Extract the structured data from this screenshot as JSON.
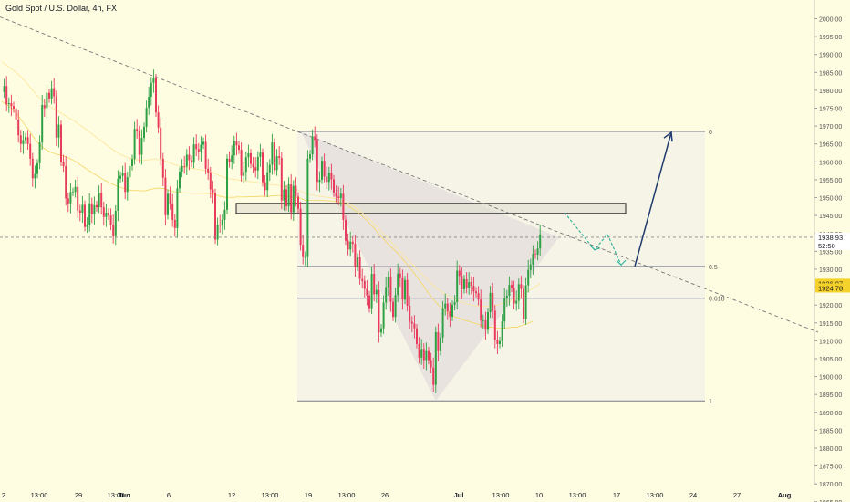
{
  "chart_data": {
    "type": "candlestick",
    "title": "Gold Spot / U.S. Dollar, 4h, FX",
    "ylim": [
      1865,
      2000
    ],
    "y_ticks": [
      1865,
      1870,
      1875,
      1880,
      1885,
      1890,
      1895,
      1900,
      1905,
      1910,
      1915,
      1920,
      1925,
      1930,
      1935,
      1940,
      1945,
      1950,
      1955,
      1960,
      1965,
      1970,
      1975,
      1980,
      1985,
      1990,
      1995,
      2000
    ],
    "x_labels": [
      "2",
      "13:00",
      "29",
      "13:00",
      "Jun",
      "6",
      "12",
      "13:00",
      "19",
      "13:00",
      "26",
      "Jul",
      "13:00",
      "10",
      "13:00",
      "17",
      "13:00",
      "24",
      "27",
      "Aug"
    ],
    "price_labels": [
      {
        "text": "1938.93",
        "value": 1938.93,
        "bg": "#ffffff",
        "fg": "#131722"
      },
      {
        "text": "52:50",
        "value": 1936.6,
        "bg": "#ffffff",
        "fg": "#131722"
      },
      {
        "text": "1926.07",
        "value": 1926.07,
        "bg": "#f5d22a",
        "fg": "#131722"
      },
      {
        "text": "1924.78",
        "value": 1924.78,
        "bg": "#f5d22a",
        "fg": "#131722"
      }
    ],
    "fib_levels": [
      {
        "label": "0",
        "value": 1968.5
      },
      {
        "label": "0.5",
        "value": 1930.8
      },
      {
        "label": "0.618",
        "value": 1921.9
      },
      {
        "label": "1",
        "value": 1893.2
      }
    ],
    "resistance_zone": [
      1945.6,
      1948.4
    ],
    "current_price": 1938.93,
    "colors": {
      "up": "#26a69a",
      "down": "#ef5350",
      "up_alt": "#2ea043",
      "down_alt": "#e83b5c",
      "ma": "#f5d86b",
      "fib": "#787b86",
      "arrow_up": "#1f3a6e",
      "arrow_down": "#2bb39a",
      "bg": "#fffde1"
    },
    "series": [
      {
        "values": [
          1979.5,
          1981.2,
          1976.1,
          1976.4,
          1975.6,
          1974.9,
          1971.8,
          1967.4,
          1965.0,
          1966.1,
          1966.9,
          1965.0,
          1960.9,
          1955.4,
          1956.6,
          1959.6,
          1965.4,
          1975.9,
          1975.0,
          1979.3,
          1977.7,
          1980.6,
          1978.3,
          1966.8,
          1970.4,
          1960.0,
          1958.8,
          1949.8,
          1948.4,
          1951.6,
          1951.6,
          1953.0,
          1946.4,
          1945.8,
          1948.0,
          1941.8,
          1942.5,
          1948.4,
          1945.3,
          1947.9,
          1947.3,
          1951.4,
          1947.3,
          1944.6,
          1945.8,
          1945.0,
          1942.5,
          1939.2,
          1946.3,
          1955.3,
          1956.1,
          1956.9,
          1951.6,
          1955.7,
          1958.8,
          1960.8,
          1969.2,
          1968.5,
          1962.0,
          1966.7,
          1969.8,
          1975.1,
          1978.2,
          1982.1,
          1983.4,
          1973.8,
          1969.6,
          1960.9,
          1955.6,
          1945.1,
          1951.1,
          1948.2,
          1943.8,
          1941.5,
          1952.6,
          1957.3,
          1958.8,
          1958.7,
          1962.0,
          1960.5,
          1959.8,
          1964.9,
          1963.6,
          1962.9,
          1964.8,
          1965.6,
          1958.1,
          1957.0,
          1952.3,
          1951.3,
          1938.3,
          1942.4,
          1942.2,
          1943.8,
          1946.6,
          1960.9,
          1960.0,
          1961.8,
          1965.7,
          1964.6,
          1963.4,
          1956.1,
          1957.2,
          1961.3,
          1962.4,
          1959.4,
          1958.5,
          1957.6,
          1961.4,
          1962.6,
          1954.3,
          1952.1,
          1957.1,
          1959.2,
          1965.4,
          1957.7,
          1961.6,
          1961.1,
          1949.2,
          1952.3,
          1947.6,
          1953.7,
          1945.9,
          1953.3,
          1950.3,
          1946.9,
          1936.8,
          1933.4,
          1933.4,
          1960.9,
          1962.1,
          1967.1,
          1966.1,
          1954.4,
          1955.0,
          1960.3,
          1955.9,
          1954.4,
          1957.0,
          1955.1,
          1951.4,
          1950.3,
          1949.9,
          1951.1,
          1943.8,
          1938.0,
          1935.5,
          1937.7,
          1937.1,
          1930.7,
          1933.3,
          1927.3,
          1926.7,
          1924.5,
          1922.7,
          1919.1,
          1928.7,
          1923.0,
          1924.2,
          1912.3,
          1913.5,
          1920.7,
          1925.0,
          1927.8,
          1920.9,
          1916.7,
          1922.8,
          1928.8,
          1927.5,
          1921.5,
          1927.0,
          1919.8,
          1915.3,
          1914.8,
          1913.5,
          1909.1,
          1905.3,
          1907.7,
          1904.6,
          1907.1,
          1904.6,
          1902.5,
          1897.7,
          1912.4,
          1907.1,
          1910.9,
          1919.1,
          1920.4,
          1918.2,
          1916.7,
          1920.1,
          1920.8,
          1929.6,
          1928.1,
          1924.4,
          1927.2,
          1924.9,
          1926.4,
          1925.4,
          1923.8,
          1923.3,
          1921.5,
          1915.7,
          1915.7,
          1913.1,
          1918.0,
          1923.4,
          1918.4,
          1910.3,
          1909.1,
          1909.9,
          1915.4,
          1921.9,
          1922.6,
          1925.6,
          1924.8,
          1920.4,
          1921.2,
          1925.8,
          1924.5,
          1916.1,
          1925.5,
          1929.8,
          1931.3,
          1934.3,
          1934.1,
          1935.8,
          1939.7
        ]
      },
      {
        "values": [
          1976.9,
          1976.5,
          1976.0,
          1975.6,
          1975.1,
          1974.4,
          1973.8,
          1972.8,
          1971.9,
          1971.0,
          1970.0,
          1969.3,
          1968.2,
          1967.3,
          1966.3,
          1965.5,
          1964.8,
          1964.2,
          1963.7,
          1963.3,
          1962.9,
          1962.6,
          1962.4,
          1962.1,
          1962.0,
          1961.9,
          1961.7,
          1961.4,
          1961.2,
          1960.8,
          1960.5,
          1960.1,
          1959.7,
          1959.2,
          1958.8,
          1958.3,
          1957.9,
          1957.5,
          1957.0,
          1956.6,
          1956.2,
          1955.8,
          1955.4,
          1955.0,
          1954.7,
          1954.3,
          1954.0,
          1953.6,
          1953.4,
          1953.1,
          1952.9,
          1952.7,
          1952.5,
          1952.3,
          1952.1,
          1952.0,
          1952.0,
          1952.0,
          1951.9,
          1951.9,
          1951.9,
          1952.0,
          1952.2,
          1952.3,
          1952.5,
          1952.6,
          1952.7,
          1952.6,
          1952.6,
          1952.4,
          1952.2,
          1952.0,
          1951.8,
          1951.6,
          1951.5,
          1951.4,
          1951.4,
          1951.3,
          1951.3,
          1951.3,
          1951.2,
          1951.2,
          1951.2,
          1951.2,
          1951.2,
          1951.2,
          1951.2,
          1951.2,
          1951.1,
          1951.0,
          1950.8,
          1950.6,
          1950.4,
          1950.3,
          1950.1,
          1950.1,
          1950.1,
          1950.1,
          1950.1,
          1950.2,
          1950.2,
          1950.2,
          1950.2,
          1950.2,
          1950.3,
          1950.3,
          1950.3,
          1950.3,
          1950.3,
          1950.4,
          1950.4,
          1950.3,
          1950.4,
          1950.4,
          1950.5,
          1950.5,
          1950.6,
          1950.6,
          1950.5,
          1950.4,
          1950.3,
          1950.3,
          1950.2,
          1950.1,
          1950.1,
          1950.0,
          1949.8,
          1949.5,
          1949.2,
          1949.2,
          1949.2,
          1949.2,
          1949.2,
          1949.2,
          1949.2,
          1949.2,
          1949.2,
          1949.1,
          1949.1,
          1949.1,
          1949.0,
          1948.9,
          1948.8,
          1948.6,
          1948.4,
          1948.1,
          1947.7,
          1947.3,
          1946.9,
          1946.4,
          1945.9,
          1945.4,
          1944.8,
          1944.2,
          1943.6,
          1942.8,
          1942.2,
          1941.5,
          1940.6,
          1939.8,
          1939.1,
          1938.5,
          1937.8,
          1937.0,
          1936.3,
          1935.7,
          1935.1,
          1934.4,
          1933.7,
          1932.9,
          1932.1,
          1931.3,
          1930.5,
          1929.7,
          1928.8,
          1927.9,
          1927.0,
          1926.1,
          1925.2,
          1924.2,
          1923.3,
          1922.5,
          1921.6,
          1920.8,
          1920.1,
          1919.5,
          1918.9,
          1918.3,
          1917.7,
          1917.3,
          1917.0,
          1916.7,
          1916.5,
          1916.3,
          1916.0,
          1915.8,
          1915.6,
          1915.4,
          1915.2,
          1915.0,
          1914.8,
          1914.6,
          1914.4,
          1914.1,
          1914.0,
          1913.9,
          1913.8,
          1913.8,
          1913.6,
          1913.5,
          1913.5,
          1913.5,
          1913.5,
          1913.6,
          1913.7,
          1913.8,
          1913.8,
          1913.8,
          1914.0,
          1914.2,
          1914.4,
          1914.6,
          1914.9,
          1915.2,
          1915.5
        ]
      },
      {
        "values": [
          1988.0,
          1987.5,
          1987.0,
          1986.5,
          1986.0,
          1985.5,
          1985.0,
          1984.4,
          1983.8,
          1983.1,
          1982.4,
          1981.6,
          1980.8,
          1980.0,
          1979.3,
          1978.5,
          1977.8,
          1977.2,
          1976.6,
          1976.1,
          1975.6,
          1975.2,
          1974.8,
          1974.4,
          1974.0,
          1973.6,
          1973.2,
          1972.8,
          1972.4,
          1972.0,
          1971.6,
          1971.2,
          1970.7,
          1970.3,
          1969.8,
          1969.3,
          1968.8,
          1968.3,
          1967.8,
          1967.3,
          1966.8,
          1966.3,
          1965.8,
          1965.3,
          1964.8,
          1964.3,
          1963.8,
          1963.3,
          1962.9,
          1962.5,
          1962.1,
          1961.8,
          1961.5,
          1961.2,
          1961.0,
          1960.8,
          1960.7,
          1960.6,
          1960.5,
          1960.4,
          1960.4,
          1960.5,
          1960.6,
          1960.7,
          1960.8,
          1960.8,
          1960.7,
          1960.6,
          1960.4,
          1960.2,
          1959.9,
          1959.7,
          1959.4,
          1959.2,
          1959.0,
          1958.8,
          1958.7,
          1958.5,
          1958.4,
          1958.3,
          1958.2,
          1958.1,
          1958.0,
          1957.9,
          1957.8,
          1957.7,
          1957.6,
          1957.4,
          1957.2,
          1957.0,
          1956.7,
          1956.4,
          1956.1,
          1955.8,
          1955.6,
          1955.4,
          1955.3,
          1955.2,
          1955.1,
          1955.0,
          1954.9,
          1954.8,
          1954.7,
          1954.6,
          1954.6,
          1954.5,
          1954.4,
          1954.3,
          1954.2,
          1954.1,
          1954.0,
          1953.9,
          1953.8,
          1953.7,
          1953.6,
          1953.5,
          1953.5,
          1953.4,
          1953.3,
          1953.1,
          1953.0,
          1952.8,
          1952.7,
          1952.5,
          1952.3,
          1952.1,
          1951.8,
          1951.5,
          1951.2,
          1951.0,
          1950.8,
          1950.7,
          1950.6,
          1950.5,
          1950.4,
          1950.3,
          1950.2,
          1950.1,
          1950.0,
          1949.9,
          1949.8,
          1949.7,
          1949.5,
          1949.3,
          1949.1,
          1948.8,
          1948.5,
          1948.1,
          1947.7,
          1947.3,
          1946.8,
          1946.3,
          1945.8,
          1945.2,
          1944.6,
          1944.0,
          1943.4,
          1942.7,
          1942.0,
          1941.3,
          1940.6,
          1939.9,
          1939.2,
          1938.5,
          1937.8,
          1937.1,
          1936.4,
          1935.7,
          1935.0,
          1934.3,
          1933.6,
          1932.9,
          1932.2,
          1931.5,
          1930.8,
          1930.1,
          1929.4,
          1928.7,
          1928.0,
          1927.3,
          1926.7,
          1926.1,
          1925.5,
          1924.9,
          1924.4,
          1923.9,
          1923.4,
          1923.0,
          1922.6,
          1922.2,
          1921.9,
          1921.6,
          1921.3,
          1921.0,
          1920.8,
          1920.6,
          1920.4,
          1920.2,
          1920.0,
          1919.9,
          1919.8,
          1919.7,
          1919.6,
          1919.6,
          1919.6,
          1919.6,
          1919.7,
          1919.8,
          1919.9,
          1920.0,
          1920.2,
          1920.4,
          1920.6,
          1920.8,
          1921.1,
          1921.4,
          1921.7,
          1922.0,
          1922.3,
          1922.7,
          1923.1,
          1923.5,
          1923.9,
          1924.3,
          1924.7,
          1925.1,
          1925.5,
          1926.0
        ]
      }
    ]
  }
}
